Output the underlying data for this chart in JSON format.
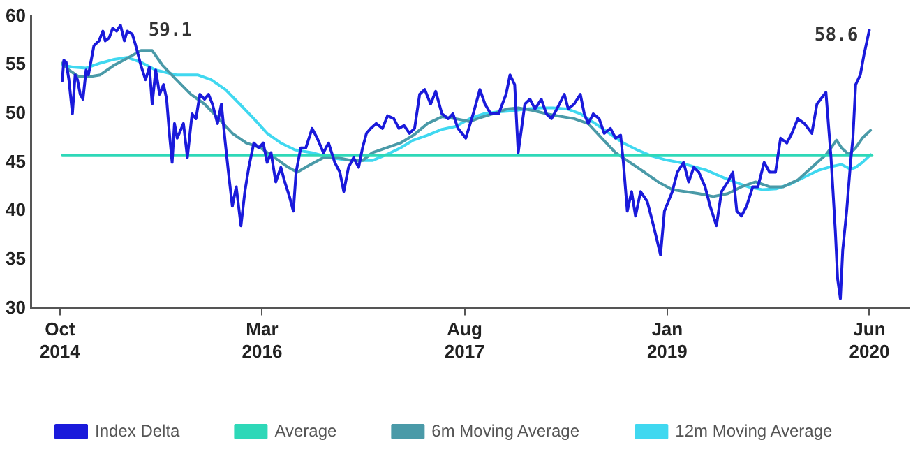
{
  "chart_data": {
    "type": "line",
    "xlim": [
      "2014-07-20",
      "2020-09-10"
    ],
    "ylim": [
      30,
      60
    ],
    "yticks": [
      30,
      35,
      40,
      45,
      50,
      55,
      60
    ],
    "xticks": [
      {
        "value": "2014-10-01",
        "label": "Oct 2014"
      },
      {
        "value": "2016-03-01",
        "label": "Mar 2016"
      },
      {
        "value": "2017-08-01",
        "label": "Aug 2017"
      },
      {
        "value": "2019-01-01",
        "label": "Jan 2019"
      },
      {
        "value": "2020-06-01",
        "label": "Jun 2020"
      }
    ],
    "grid": false,
    "legend": "bottom",
    "marker": "none",
    "line_style": "solid",
    "annotations": [
      {
        "text": "59.1",
        "x": "2015-03-05",
        "y": 59.1
      },
      {
        "text": "58.6",
        "x": "2020-06-01",
        "y": 58.6
      }
    ],
    "series": [
      {
        "name": "Index Delta",
        "color": "#1a1adb",
        "x": [
          "2014-10-07",
          "2014-10-11",
          "2014-10-17",
          "2014-10-24",
          "2014-11-02",
          "2014-11-09",
          "2014-11-15",
          "2014-11-22",
          "2014-11-29",
          "2014-12-07",
          "2014-12-13",
          "2014-12-20",
          "2014-12-27",
          "2015-01-09",
          "2015-01-19",
          "2015-01-25",
          "2015-02-04",
          "2015-02-13",
          "2015-02-23",
          "2015-03-05",
          "2015-03-15",
          "2015-03-22",
          "2015-04-04",
          "2015-04-13",
          "2015-04-26",
          "2015-05-08",
          "2015-05-18",
          "2015-05-25",
          "2015-06-03",
          "2015-06-13",
          "2015-06-23",
          "2015-07-01",
          "2015-07-08",
          "2015-07-15",
          "2015-07-21",
          "2015-07-28",
          "2015-08-13",
          "2015-08-23",
          "2015-09-04",
          "2015-09-14",
          "2015-09-24",
          "2015-10-06",
          "2015-10-16",
          "2015-10-26",
          "2015-11-08",
          "2015-11-18",
          "2015-11-28",
          "2015-12-06",
          "2015-12-16",
          "2015-12-26",
          "2016-01-07",
          "2016-01-17",
          "2016-01-27",
          "2016-02-09",
          "2016-02-22",
          "2016-03-04",
          "2016-03-14",
          "2016-03-24",
          "2016-04-05",
          "2016-04-18",
          "2016-04-28",
          "2016-05-10",
          "2016-05-20",
          "2016-05-27",
          "2016-06-08",
          "2016-06-21",
          "2016-07-07",
          "2016-07-20",
          "2016-08-05",
          "2016-08-18",
          "2016-09-03",
          "2016-09-16",
          "2016-09-26",
          "2016-10-08",
          "2016-10-21",
          "2016-11-03",
          "2016-11-13",
          "2016-11-23",
          "2016-12-04",
          "2016-12-18",
          "2017-01-03",
          "2017-01-16",
          "2017-02-01",
          "2017-02-14",
          "2017-02-27",
          "2017-03-13",
          "2017-03-26",
          "2017-04-08",
          "2017-04-21",
          "2017-05-06",
          "2017-05-19",
          "2017-06-04",
          "2017-06-20",
          "2017-07-02",
          "2017-07-15",
          "2017-08-04",
          "2017-08-23",
          "2017-09-09",
          "2017-09-22",
          "2017-10-07",
          "2017-10-27",
          "2017-11-15",
          "2017-11-25",
          "2017-12-07",
          "2017-12-16",
          "2018-01-02",
          "2018-01-15",
          "2018-01-28",
          "2018-02-13",
          "2018-02-26",
          "2018-03-11",
          "2018-03-25",
          "2018-04-13",
          "2018-04-23",
          "2018-05-08",
          "2018-05-24",
          "2018-06-03",
          "2018-06-13",
          "2018-06-26",
          "2018-07-11",
          "2018-07-24",
          "2018-08-09",
          "2018-08-22",
          "2018-09-04",
          "2018-09-11",
          "2018-09-21",
          "2018-10-02",
          "2018-10-12",
          "2018-10-25",
          "2018-11-11",
          "2018-11-24",
          "2018-12-06",
          "2018-12-15",
          "2018-12-25",
          "2019-01-14",
          "2019-01-27",
          "2019-02-12",
          "2019-02-25",
          "2019-03-10",
          "2019-03-23",
          "2019-04-08",
          "2019-04-21",
          "2019-05-07",
          "2019-05-20",
          "2019-06-05",
          "2019-06-18",
          "2019-06-28",
          "2019-07-10",
          "2019-07-23",
          "2019-08-08",
          "2019-08-21",
          "2019-09-06",
          "2019-09-20",
          "2019-10-05",
          "2019-10-18",
          "2019-11-03",
          "2019-11-16",
          "2019-12-01",
          "2019-12-18",
          "2020-01-06",
          "2020-01-19",
          "2020-02-11",
          "2020-02-24",
          "2020-03-06",
          "2020-03-12",
          "2020-03-19",
          "2020-03-25",
          "2020-04-04",
          "2020-04-14",
          "2020-04-20",
          "2020-04-27",
          "2020-05-09",
          "2020-05-18",
          "2020-06-01"
        ],
        "values": [
          53.4,
          55.5,
          55.3,
          53.5,
          50.0,
          54,
          53.5,
          52,
          51.5,
          54.5,
          54,
          55.5,
          57,
          57.5,
          58.5,
          57.5,
          57.8,
          58.8,
          58.5,
          59.1,
          57.5,
          58.5,
          58.2,
          57,
          55,
          53.5,
          54.8,
          51,
          54.5,
          52,
          53,
          51.5,
          48,
          45,
          49,
          47.5,
          49,
          45.5,
          50,
          49.5,
          52,
          51.5,
          52,
          51,
          49,
          51,
          47,
          44,
          40.5,
          42.5,
          38.5,
          42,
          44.5,
          47,
          46.5,
          47,
          45,
          46,
          43,
          44.5,
          43,
          41.5,
          40,
          44,
          46.5,
          46.5,
          48.5,
          47.5,
          46,
          47,
          45,
          44,
          42,
          44.5,
          45.5,
          44.5,
          46.5,
          48,
          48.5,
          49,
          48.5,
          49.8,
          49.5,
          48.5,
          48.8,
          48,
          48.5,
          52,
          52.5,
          51,
          52.3,
          50,
          49.5,
          50,
          48.5,
          47.5,
          50,
          52.5,
          51,
          50,
          50,
          52,
          54,
          53,
          46,
          51,
          51.5,
          50.5,
          51.5,
          50,
          49.5,
          50.5,
          52,
          50.5,
          51,
          52,
          50,
          49,
          50,
          49.5,
          48,
          48.5,
          47.5,
          47.8,
          45,
          40,
          42,
          39.5,
          42,
          41,
          39,
          37,
          35.5,
          40,
          42,
          44,
          45,
          43,
          44.5,
          44,
          42.5,
          40.5,
          38.5,
          42,
          43,
          44,
          40,
          39.5,
          40.5,
          42.5,
          42.5,
          45,
          44,
          44,
          47.5,
          47,
          48,
          49.5,
          49,
          48,
          51,
          52.2,
          45.5,
          38,
          33,
          31,
          36,
          40,
          45,
          47.5,
          53,
          54,
          56,
          58.6
        ]
      },
      {
        "name": "Average",
        "color": "#2ed8b8",
        "x": [
          "2014-10-07",
          "2020-06-08"
        ],
        "values": [
          45.7,
          45.7
        ]
      },
      {
        "name": "6m Moving Average",
        "color": "#4a9aa8",
        "x": [
          "2014-10-07",
          "2014-10-24",
          "2014-11-19",
          "2014-12-13",
          "2015-01-12",
          "2015-02-17",
          "2015-03-22",
          "2015-04-26",
          "2015-05-25",
          "2015-06-20",
          "2015-07-26",
          "2015-09-01",
          "2015-10-06",
          "2015-11-11",
          "2015-12-16",
          "2016-01-21",
          "2016-02-26",
          "2016-04-02",
          "2016-05-07",
          "2016-05-30",
          "2016-06-29",
          "2016-08-05",
          "2016-09-10",
          "2016-10-15",
          "2016-11-13",
          "2016-12-08",
          "2017-01-13",
          "2017-02-18",
          "2017-03-23",
          "2017-04-28",
          "2017-06-04",
          "2017-07-09",
          "2017-08-14",
          "2017-09-09",
          "2017-10-13",
          "2017-11-18",
          "2017-12-16",
          "2018-01-28",
          "2018-02-26",
          "2018-03-25",
          "2018-05-08",
          "2018-06-13",
          "2018-07-18",
          "2018-08-22",
          "2018-09-28",
          "2018-11-04",
          "2018-12-09",
          "2019-01-14",
          "2019-02-18",
          "2019-03-23",
          "2019-04-29",
          "2019-06-05",
          "2019-07-10",
          "2019-08-15",
          "2019-09-20",
          "2019-10-25",
          "2019-12-01",
          "2020-01-06",
          "2020-02-11",
          "2020-02-24",
          "2020-03-09",
          "2020-03-22",
          "2020-04-10",
          "2020-04-27",
          "2020-05-14",
          "2020-06-04"
        ],
        "values": [
          55.2,
          54.5,
          53.8,
          53.8,
          54,
          55,
          55.7,
          56.5,
          56.5,
          55,
          53.5,
          52,
          51,
          49.5,
          48,
          47,
          46.5,
          45.5,
          44.5,
          44,
          44.7,
          45.5,
          45.5,
          45.2,
          45.2,
          46,
          46.5,
          47,
          47.8,
          49,
          49.7,
          49.5,
          49.2,
          49.6,
          50,
          50.5,
          50.6,
          50.3,
          50,
          49.8,
          49.5,
          49,
          47.5,
          46,
          45,
          44,
          43,
          42.2,
          42,
          41.8,
          41.5,
          41.8,
          42.5,
          43,
          42.5,
          42.5,
          43.2,
          44.5,
          45.8,
          46.5,
          47.3,
          46.5,
          45.8,
          46.5,
          47.5,
          48.3
        ]
      },
      {
        "name": "12m Moving Average",
        "color": "#40d8f0",
        "x": [
          "2014-10-07",
          "2014-11-02",
          "2014-12-07",
          "2015-01-12",
          "2015-02-17",
          "2015-03-22",
          "2015-04-26",
          "2015-06-03",
          "2015-07-26",
          "2015-09-18",
          "2015-10-23",
          "2015-11-28",
          "2016-01-04",
          "2016-02-09",
          "2016-03-14",
          "2016-04-18",
          "2016-05-24",
          "2016-07-07",
          "2016-08-22",
          "2016-09-26",
          "2016-11-03",
          "2016-12-08",
          "2017-01-13",
          "2017-02-18",
          "2017-03-23",
          "2017-04-28",
          "2017-06-04",
          "2017-07-09",
          "2017-08-14",
          "2017-09-19",
          "2017-10-24",
          "2017-11-29",
          "2018-01-05",
          "2018-02-10",
          "2018-03-15",
          "2018-04-20",
          "2018-05-24",
          "2018-07-01",
          "2018-08-06",
          "2018-09-11",
          "2018-10-16",
          "2018-11-20",
          "2018-12-25",
          "2019-02-02",
          "2019-03-07",
          "2019-04-12",
          "2019-05-16",
          "2019-06-21",
          "2019-07-27",
          "2019-09-03",
          "2019-10-08",
          "2019-11-13",
          "2019-12-18",
          "2020-01-23",
          "2020-02-27",
          "2020-03-22",
          "2020-04-14",
          "2020-04-27",
          "2020-05-14",
          "2020-06-04"
        ],
        "values": [
          55,
          54.8,
          54.7,
          55.2,
          55.6,
          55.8,
          55.3,
          54.5,
          54,
          54,
          53.5,
          52.5,
          51,
          49.5,
          48,
          47,
          46.3,
          46,
          45.5,
          45.3,
          45.2,
          45.2,
          45.8,
          46.5,
          47.3,
          47.8,
          48.4,
          48.7,
          49.5,
          50,
          50.2,
          50.3,
          50.5,
          50.6,
          50.6,
          50.5,
          50,
          49,
          48,
          47,
          46.3,
          45.7,
          45.3,
          45,
          44.6,
          44.2,
          43.6,
          43,
          42.5,
          42.2,
          42.3,
          42.8,
          43.5,
          44.2,
          44.6,
          44.8,
          44.3,
          44.5,
          45,
          45.8
        ]
      }
    ]
  }
}
